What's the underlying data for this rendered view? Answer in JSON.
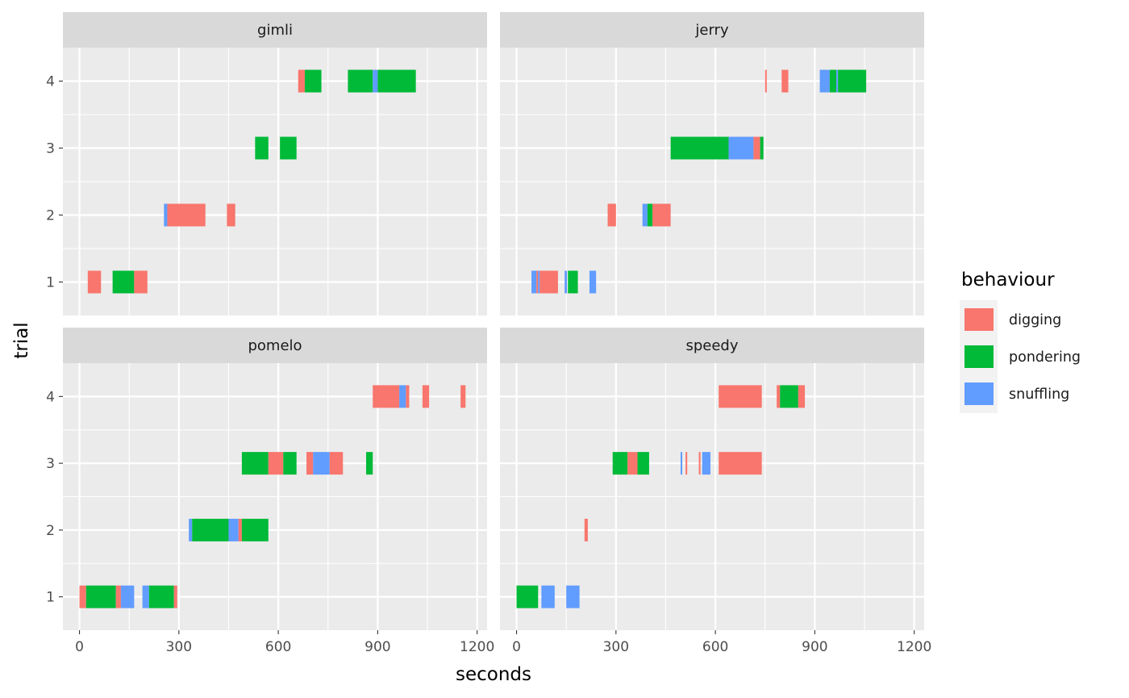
{
  "chart_data": {
    "type": "bar",
    "subtype": "faceted-timeline",
    "xlabel": "seconds",
    "ylabel": "trial",
    "xlim": [
      -50,
      1230
    ],
    "xticks": [
      0,
      300,
      600,
      900,
      1200
    ],
    "xtick_labels": [
      "0",
      "300",
      "600",
      "900",
      "1200"
    ],
    "ylim": [
      0.5,
      4.5
    ],
    "yticks": [
      1,
      2,
      3,
      4
    ],
    "ytick_labels": [
      "1",
      "2",
      "3",
      "4"
    ],
    "grid": true,
    "legend": {
      "title": "behaviour",
      "placement": "right",
      "entries": [
        {
          "label": "digging",
          "color": "#F8766D"
        },
        {
          "label": "pondering",
          "color": "#00BA38"
        },
        {
          "label": "snuffling",
          "color": "#619CFF"
        }
      ]
    },
    "colors": {
      "digging": "#F8766D",
      "pondering": "#00BA38",
      "snuffling": "#619CFF",
      "panel_background": "#EBEBEB",
      "strip_background": "#D9D9D9",
      "grid": "#FFFFFF"
    },
    "facets": [
      {
        "label": "gimli",
        "segments": [
          {
            "trial": 1,
            "behaviour": "digging",
            "start": 25,
            "end": 65
          },
          {
            "trial": 1,
            "behaviour": "pondering",
            "start": 100,
            "end": 165
          },
          {
            "trial": 1,
            "behaviour": "digging",
            "start": 165,
            "end": 205
          },
          {
            "trial": 2,
            "behaviour": "snuffling",
            "start": 255,
            "end": 265
          },
          {
            "trial": 2,
            "behaviour": "digging",
            "start": 265,
            "end": 380
          },
          {
            "trial": 2,
            "behaviour": "digging",
            "start": 445,
            "end": 470
          },
          {
            "trial": 3,
            "behaviour": "pondering",
            "start": 530,
            "end": 570
          },
          {
            "trial": 3,
            "behaviour": "pondering",
            "start": 605,
            "end": 655
          },
          {
            "trial": 4,
            "behaviour": "digging",
            "start": 660,
            "end": 680
          },
          {
            "trial": 4,
            "behaviour": "pondering",
            "start": 680,
            "end": 730
          },
          {
            "trial": 4,
            "behaviour": "pondering",
            "start": 810,
            "end": 885
          },
          {
            "trial": 4,
            "behaviour": "snuffling",
            "start": 885,
            "end": 900
          },
          {
            "trial": 4,
            "behaviour": "pondering",
            "start": 900,
            "end": 1015
          }
        ]
      },
      {
        "label": "jerry",
        "segments": [
          {
            "trial": 1,
            "behaviour": "snuffling",
            "start": 45,
            "end": 60
          },
          {
            "trial": 1,
            "behaviour": "digging",
            "start": 60,
            "end": 65
          },
          {
            "trial": 1,
            "behaviour": "snuffling",
            "start": 65,
            "end": 70
          },
          {
            "trial": 1,
            "behaviour": "digging",
            "start": 70,
            "end": 125
          },
          {
            "trial": 1,
            "behaviour": "snuffling",
            "start": 145,
            "end": 152
          },
          {
            "trial": 1,
            "behaviour": "pondering",
            "start": 155,
            "end": 185
          },
          {
            "trial": 1,
            "behaviour": "snuffling",
            "start": 220,
            "end": 240
          },
          {
            "trial": 2,
            "behaviour": "digging",
            "start": 275,
            "end": 300
          },
          {
            "trial": 2,
            "behaviour": "snuffling",
            "start": 380,
            "end": 395
          },
          {
            "trial": 2,
            "behaviour": "pondering",
            "start": 395,
            "end": 410
          },
          {
            "trial": 2,
            "behaviour": "digging",
            "start": 410,
            "end": 465
          },
          {
            "trial": 3,
            "behaviour": "pondering",
            "start": 465,
            "end": 640
          },
          {
            "trial": 3,
            "behaviour": "snuffling",
            "start": 640,
            "end": 715
          },
          {
            "trial": 3,
            "behaviour": "digging",
            "start": 715,
            "end": 735
          },
          {
            "trial": 3,
            "behaviour": "pondering",
            "start": 735,
            "end": 745
          },
          {
            "trial": 4,
            "behaviour": "digging",
            "start": 750,
            "end": 755
          },
          {
            "trial": 4,
            "behaviour": "digging",
            "start": 800,
            "end": 820
          },
          {
            "trial": 4,
            "behaviour": "snuffling",
            "start": 915,
            "end": 945
          },
          {
            "trial": 4,
            "behaviour": "pondering",
            "start": 945,
            "end": 965
          },
          {
            "trial": 4,
            "behaviour": "snuffling",
            "start": 965,
            "end": 970
          },
          {
            "trial": 4,
            "behaviour": "pondering",
            "start": 970,
            "end": 1055
          }
        ]
      },
      {
        "label": "pomelo",
        "segments": [
          {
            "trial": 1,
            "behaviour": "digging",
            "start": 0,
            "end": 20
          },
          {
            "trial": 1,
            "behaviour": "pondering",
            "start": 20,
            "end": 110
          },
          {
            "trial": 1,
            "behaviour": "digging",
            "start": 110,
            "end": 125
          },
          {
            "trial": 1,
            "behaviour": "snuffling",
            "start": 125,
            "end": 165
          },
          {
            "trial": 1,
            "behaviour": "snuffling",
            "start": 190,
            "end": 210
          },
          {
            "trial": 1,
            "behaviour": "pondering",
            "start": 210,
            "end": 285
          },
          {
            "trial": 1,
            "behaviour": "digging",
            "start": 285,
            "end": 295
          },
          {
            "trial": 2,
            "behaviour": "snuffling",
            "start": 330,
            "end": 340
          },
          {
            "trial": 2,
            "behaviour": "pondering",
            "start": 340,
            "end": 450
          },
          {
            "trial": 2,
            "behaviour": "snuffling",
            "start": 450,
            "end": 480
          },
          {
            "trial": 2,
            "behaviour": "digging",
            "start": 480,
            "end": 490
          },
          {
            "trial": 2,
            "behaviour": "pondering",
            "start": 490,
            "end": 570
          },
          {
            "trial": 3,
            "behaviour": "pondering",
            "start": 490,
            "end": 570
          },
          {
            "trial": 3,
            "behaviour": "digging",
            "start": 570,
            "end": 615
          },
          {
            "trial": 3,
            "behaviour": "pondering",
            "start": 615,
            "end": 655
          },
          {
            "trial": 3,
            "behaviour": "digging",
            "start": 685,
            "end": 705
          },
          {
            "trial": 3,
            "behaviour": "snuffling",
            "start": 705,
            "end": 755
          },
          {
            "trial": 3,
            "behaviour": "digging",
            "start": 755,
            "end": 795
          },
          {
            "trial": 3,
            "behaviour": "pondering",
            "start": 865,
            "end": 885
          },
          {
            "trial": 4,
            "behaviour": "digging",
            "start": 885,
            "end": 965
          },
          {
            "trial": 4,
            "behaviour": "snuffling",
            "start": 965,
            "end": 985
          },
          {
            "trial": 4,
            "behaviour": "digging",
            "start": 985,
            "end": 995
          },
          {
            "trial": 4,
            "behaviour": "digging",
            "start": 1035,
            "end": 1055
          },
          {
            "trial": 4,
            "behaviour": "digging",
            "start": 1150,
            "end": 1165
          }
        ]
      },
      {
        "label": "speedy",
        "segments": [
          {
            "trial": 1,
            "behaviour": "pondering",
            "start": 0,
            "end": 65
          },
          {
            "trial": 1,
            "behaviour": "snuffling",
            "start": 75,
            "end": 115
          },
          {
            "trial": 1,
            "behaviour": "snuffling",
            "start": 150,
            "end": 190
          },
          {
            "trial": 2,
            "behaviour": "digging",
            "start": 205,
            "end": 215
          },
          {
            "trial": 3,
            "behaviour": "pondering",
            "start": 290,
            "end": 335
          },
          {
            "trial": 3,
            "behaviour": "digging",
            "start": 335,
            "end": 365
          },
          {
            "trial": 3,
            "behaviour": "pondering",
            "start": 365,
            "end": 400
          },
          {
            "trial": 3,
            "behaviour": "snuffling",
            "start": 495,
            "end": 500
          },
          {
            "trial": 3,
            "behaviour": "digging",
            "start": 510,
            "end": 515
          },
          {
            "trial": 3,
            "behaviour": "digging",
            "start": 550,
            "end": 555
          },
          {
            "trial": 3,
            "behaviour": "snuffling",
            "start": 560,
            "end": 585
          },
          {
            "trial": 3,
            "behaviour": "digging",
            "start": 610,
            "end": 740
          },
          {
            "trial": 4,
            "behaviour": "digging",
            "start": 610,
            "end": 740
          },
          {
            "trial": 4,
            "behaviour": "digging",
            "start": 785,
            "end": 795
          },
          {
            "trial": 4,
            "behaviour": "pondering",
            "start": 795,
            "end": 850
          },
          {
            "trial": 4,
            "behaviour": "digging",
            "start": 850,
            "end": 870
          }
        ]
      }
    ]
  }
}
